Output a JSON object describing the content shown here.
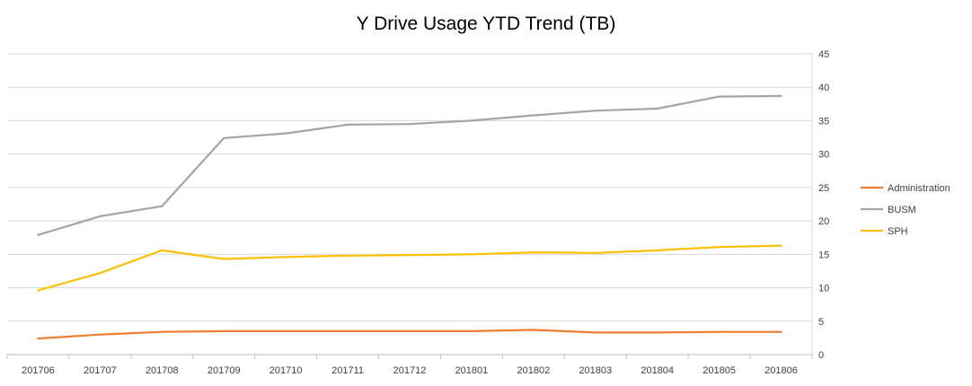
{
  "chart_data": {
    "type": "line",
    "title": "Y Drive Usage YTD Trend (TB)",
    "xlabel": "",
    "ylabel": "",
    "categories": [
      "201706",
      "201707",
      "201708",
      "201709",
      "201710",
      "201711",
      "201712",
      "201801",
      "201802",
      "201803",
      "201804",
      "201805",
      "201806"
    ],
    "ylim": [
      0,
      45
    ],
    "yticks": [
      0,
      5,
      10,
      15,
      20,
      25,
      30,
      35,
      40,
      45
    ],
    "y_axis_side": "right",
    "grid": true,
    "legend_position": "right",
    "series": [
      {
        "name": "Administration",
        "color": "#ED7D31",
        "values": [
          2.4,
          3.0,
          3.4,
          3.5,
          3.5,
          3.5,
          3.5,
          3.5,
          3.7,
          3.3,
          3.3,
          3.4,
          3.4
        ]
      },
      {
        "name": "BUSM",
        "color": "#A5A5A5",
        "values": [
          17.9,
          20.7,
          22.2,
          32.4,
          33.1,
          34.4,
          34.5,
          35.0,
          35.8,
          36.5,
          36.8,
          38.6,
          38.7
        ]
      },
      {
        "name": "SPH",
        "color": "#FFC000",
        "values": [
          9.6,
          12.2,
          15.6,
          14.3,
          14.6,
          14.8,
          14.9,
          15.0,
          15.3,
          15.2,
          15.6,
          16.1,
          16.3
        ]
      }
    ]
  }
}
